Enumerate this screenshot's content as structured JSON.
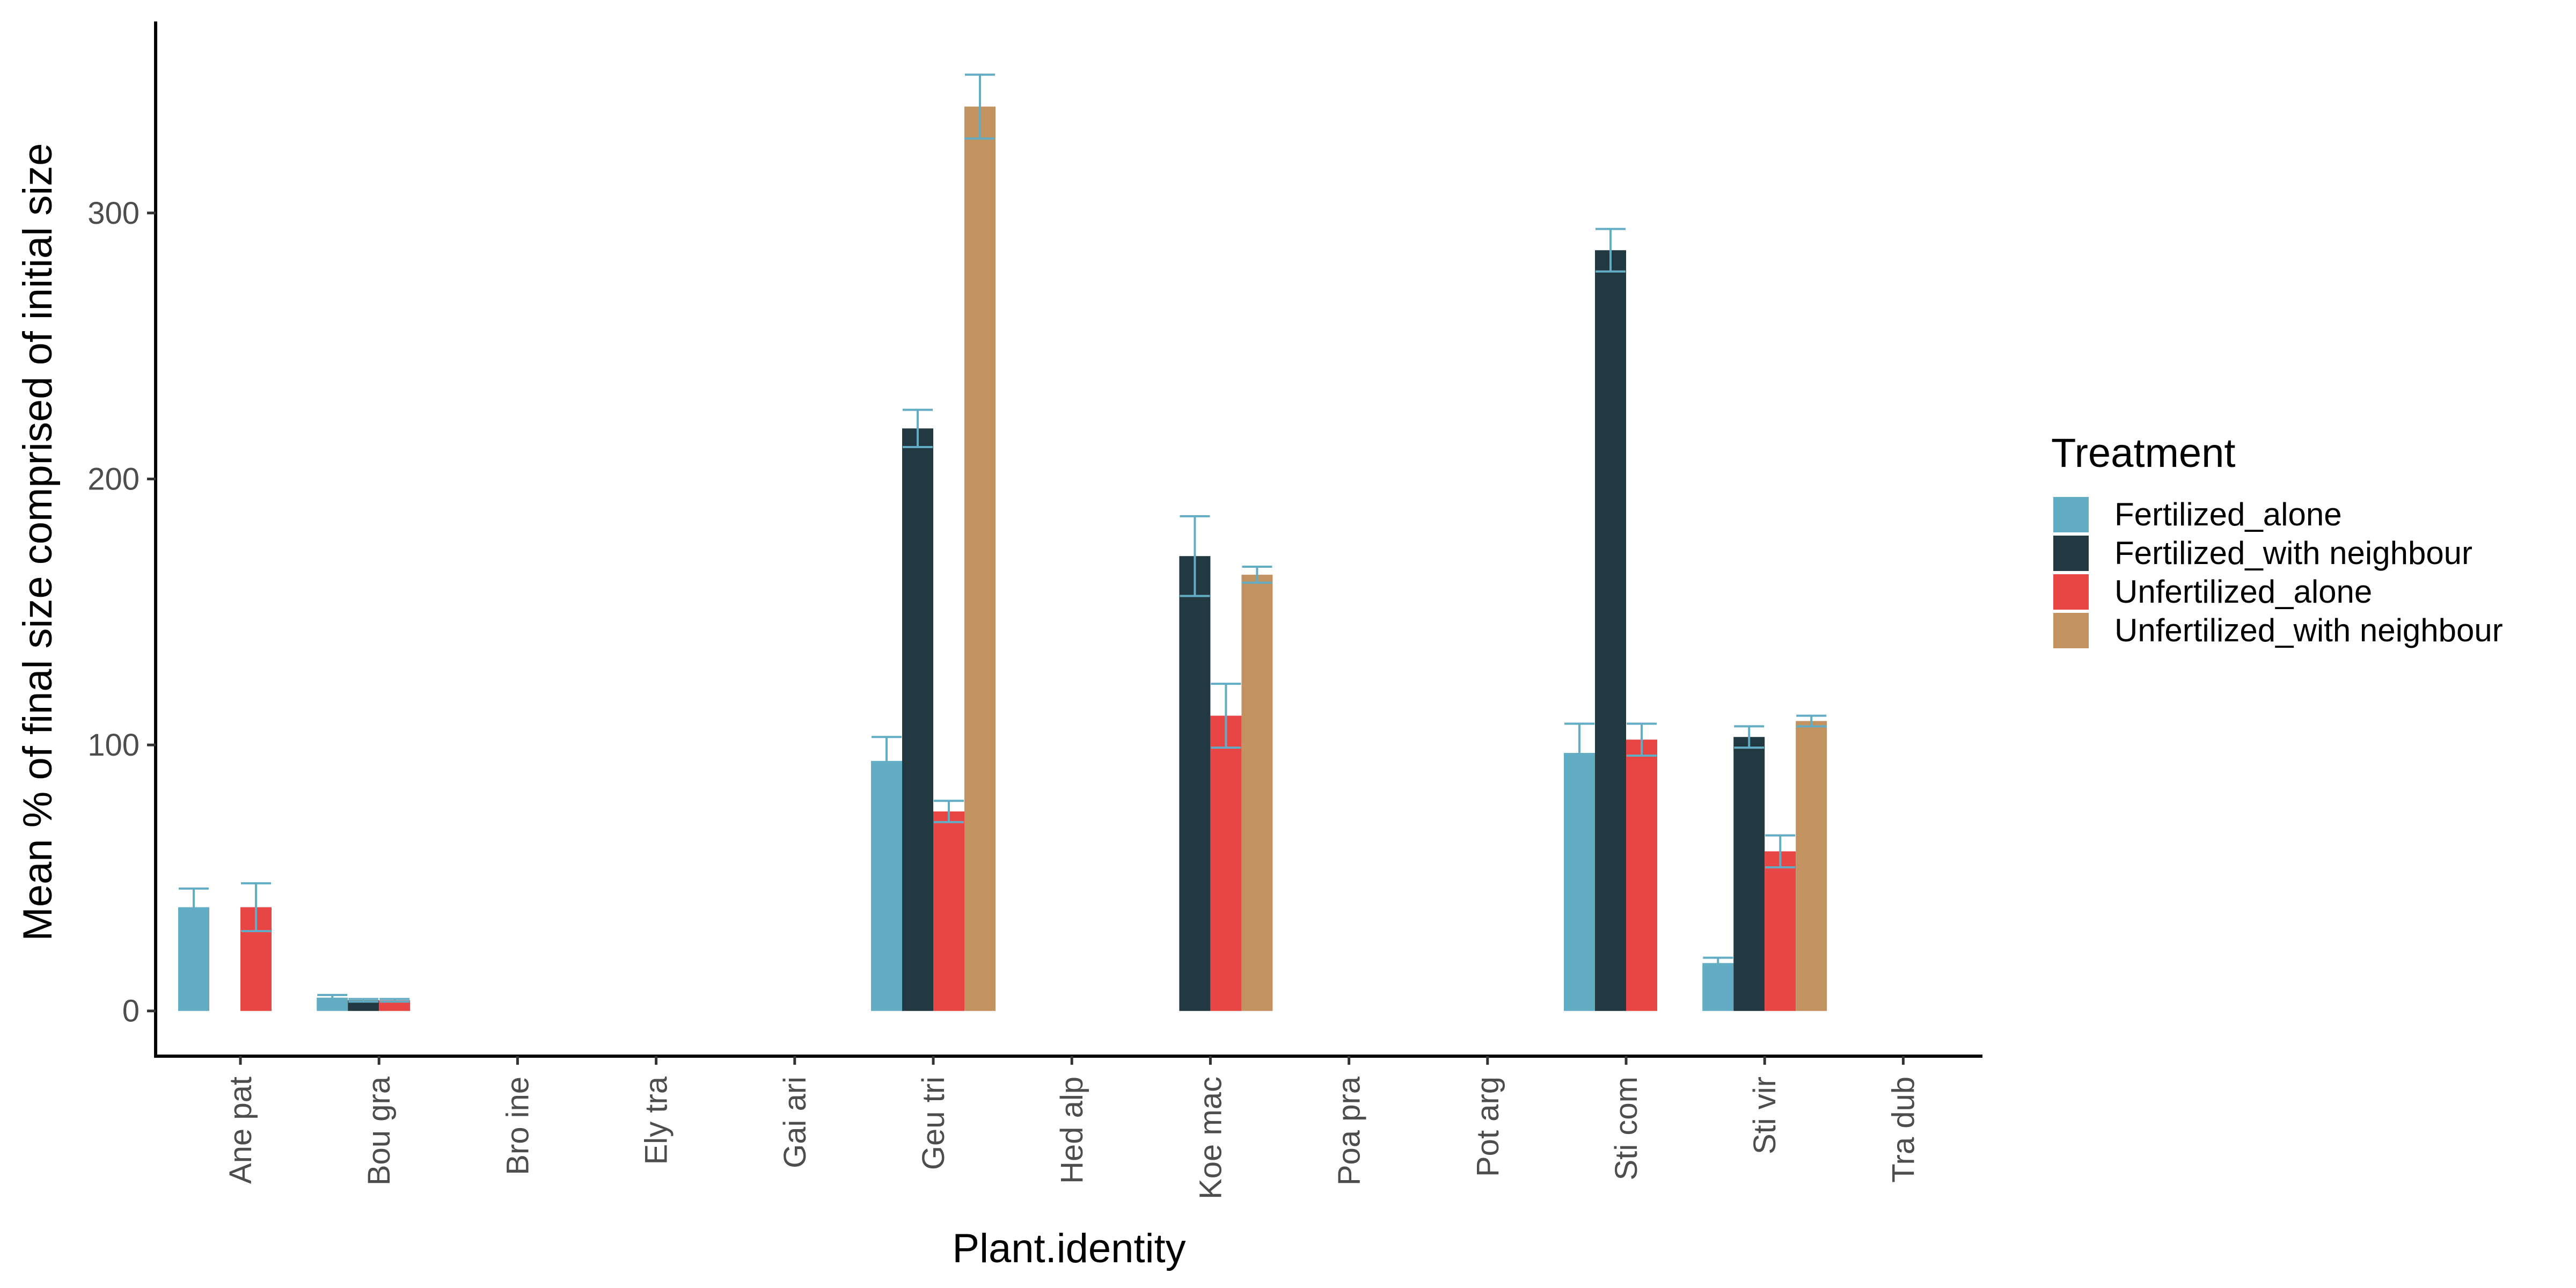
{
  "chart_data": {
    "type": "bar",
    "title": "",
    "xlabel": "Plant.identity",
    "ylabel": "Mean % of final size comprised of initial size",
    "ylim": [
      -17,
      372
    ],
    "yticks": [
      0,
      100,
      200,
      300
    ],
    "grid": false,
    "legend_position": "right",
    "legend_title": "Treatment",
    "categories": [
      "Ane pat",
      "Bou gra",
      "Bro ine",
      "Ely tra",
      "Gai ari",
      "Geu tri",
      "Hed alp",
      "Koe mac",
      "Poa pra",
      "Pot arg",
      "Sti com",
      "Sti vir",
      "Tra dub"
    ],
    "series": [
      {
        "name": "Fertilized_alone",
        "color": "#62ADC3",
        "values": [
          39,
          5,
          null,
          null,
          null,
          94,
          null,
          null,
          null,
          null,
          97,
          18,
          null
        ],
        "errors": [
          7,
          1,
          null,
          null,
          null,
          9,
          null,
          null,
          null,
          null,
          11,
          2,
          null
        ]
      },
      {
        "name": "Fertilized_with neighbour",
        "color": "#233941",
        "values": [
          null,
          4,
          null,
          null,
          null,
          219,
          null,
          171,
          null,
          null,
          286,
          103,
          null
        ],
        "errors": [
          null,
          0.5,
          null,
          null,
          null,
          7,
          null,
          15,
          null,
          null,
          8,
          4,
          null
        ]
      },
      {
        "name": "Unfertilized_alone",
        "color": "#E84545",
        "values": [
          39,
          4,
          null,
          null,
          null,
          75,
          null,
          111,
          null,
          null,
          102,
          60,
          null
        ],
        "errors": [
          9,
          0.5,
          null,
          null,
          null,
          4,
          null,
          12,
          null,
          null,
          6,
          6,
          null
        ]
      },
      {
        "name": "Unfertilized_with neighbour",
        "color": "#C29361",
        "values": [
          null,
          null,
          null,
          null,
          null,
          340,
          null,
          164,
          null,
          null,
          null,
          109,
          null
        ],
        "errors": [
          null,
          null,
          null,
          null,
          null,
          12,
          null,
          3,
          null,
          null,
          null,
          2,
          null
        ]
      }
    ],
    "error_bar_color": "#62ADC3"
  }
}
